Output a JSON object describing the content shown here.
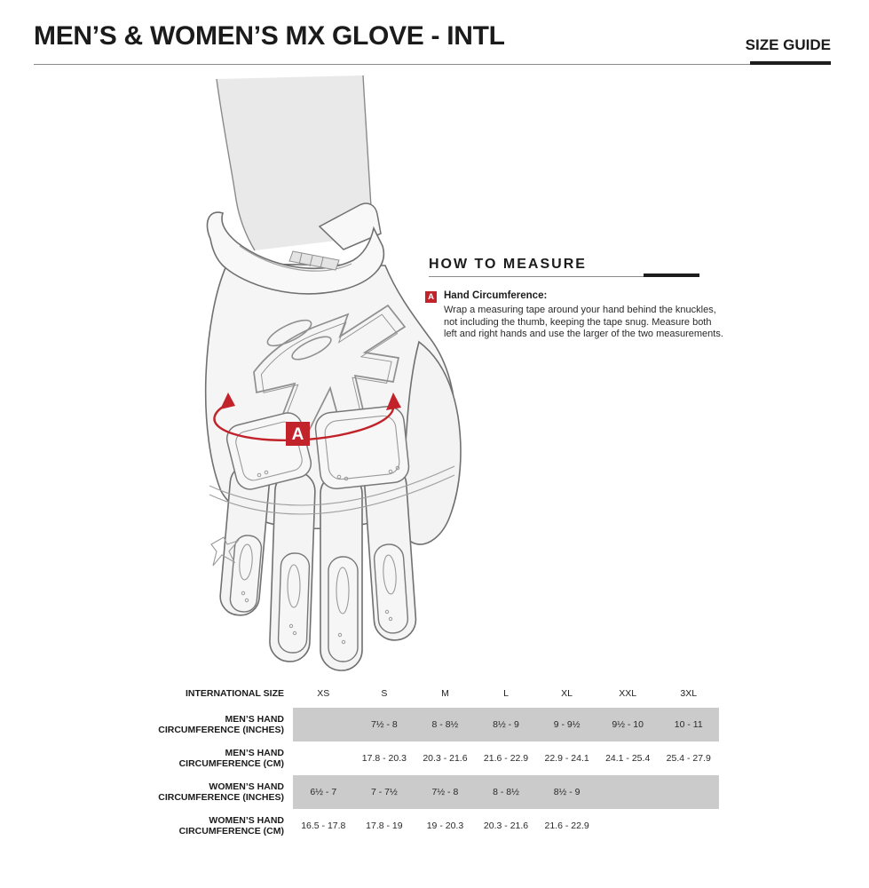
{
  "page": {
    "title": "MEN’S & WOMEN’S MX GLOVE - INTL",
    "size_guide_label": "SIZE GUIDE"
  },
  "measure": {
    "heading": "HOW TO MEASURE",
    "marker": "A",
    "item_title": "Hand Circumference:",
    "instruction_lines": [
      "Wrap a measuring tape around your hand behind the knuckles,",
      "not including the thumb, keeping the tape snug. Measure both",
      "left and right hands and use the larger of the two measurements."
    ]
  },
  "diagram": {
    "marker": "A"
  },
  "table": {
    "header": {
      "label": "INTERNATIONAL SIZE",
      "sizes": [
        "XS",
        "S",
        "M",
        "L",
        "XL",
        "XXL",
        "3XL"
      ]
    },
    "rows": [
      {
        "label_line1": "MEN’S HAND",
        "label_line2": "CIRCUMFERENCE (INCHES)",
        "shaded": true,
        "values": [
          "",
          "7½ - 8",
          "8 - 8½",
          "8½ - 9",
          "9 - 9½",
          "9½ - 10",
          "10 - 11"
        ]
      },
      {
        "label_line1": "MEN’S HAND",
        "label_line2": "CIRCUMFERENCE (CM)",
        "shaded": false,
        "values": [
          "",
          "17.8 - 20.3",
          "20.3 - 21.6",
          "21.6 - 22.9",
          "22.9 - 24.1",
          "24.1 - 25.4",
          "25.4 - 27.9"
        ]
      },
      {
        "label_line1": "WOMEN’S HAND",
        "label_line2": "CIRCUMFERENCE (INCHES)",
        "shaded": true,
        "values": [
          "6½ - 7",
          "7 - 7½",
          "7½ - 8",
          "8 - 8½",
          "8½ - 9",
          "",
          ""
        ]
      },
      {
        "label_line1": "WOMEN’S HAND",
        "label_line2": "CIRCUMFERENCE (CM)",
        "shaded": false,
        "values": [
          "16.5 - 17.8",
          "17.8 - 19",
          "19 - 20.3",
          "20.3 - 21.6",
          "21.6 - 22.9",
          "",
          ""
        ]
      }
    ]
  },
  "colors": {
    "accent_red": "#C2232B",
    "shaded_row": "#CBCBCB",
    "ink": "#1D1D1D",
    "rule_gray": "#8A8A8A"
  }
}
